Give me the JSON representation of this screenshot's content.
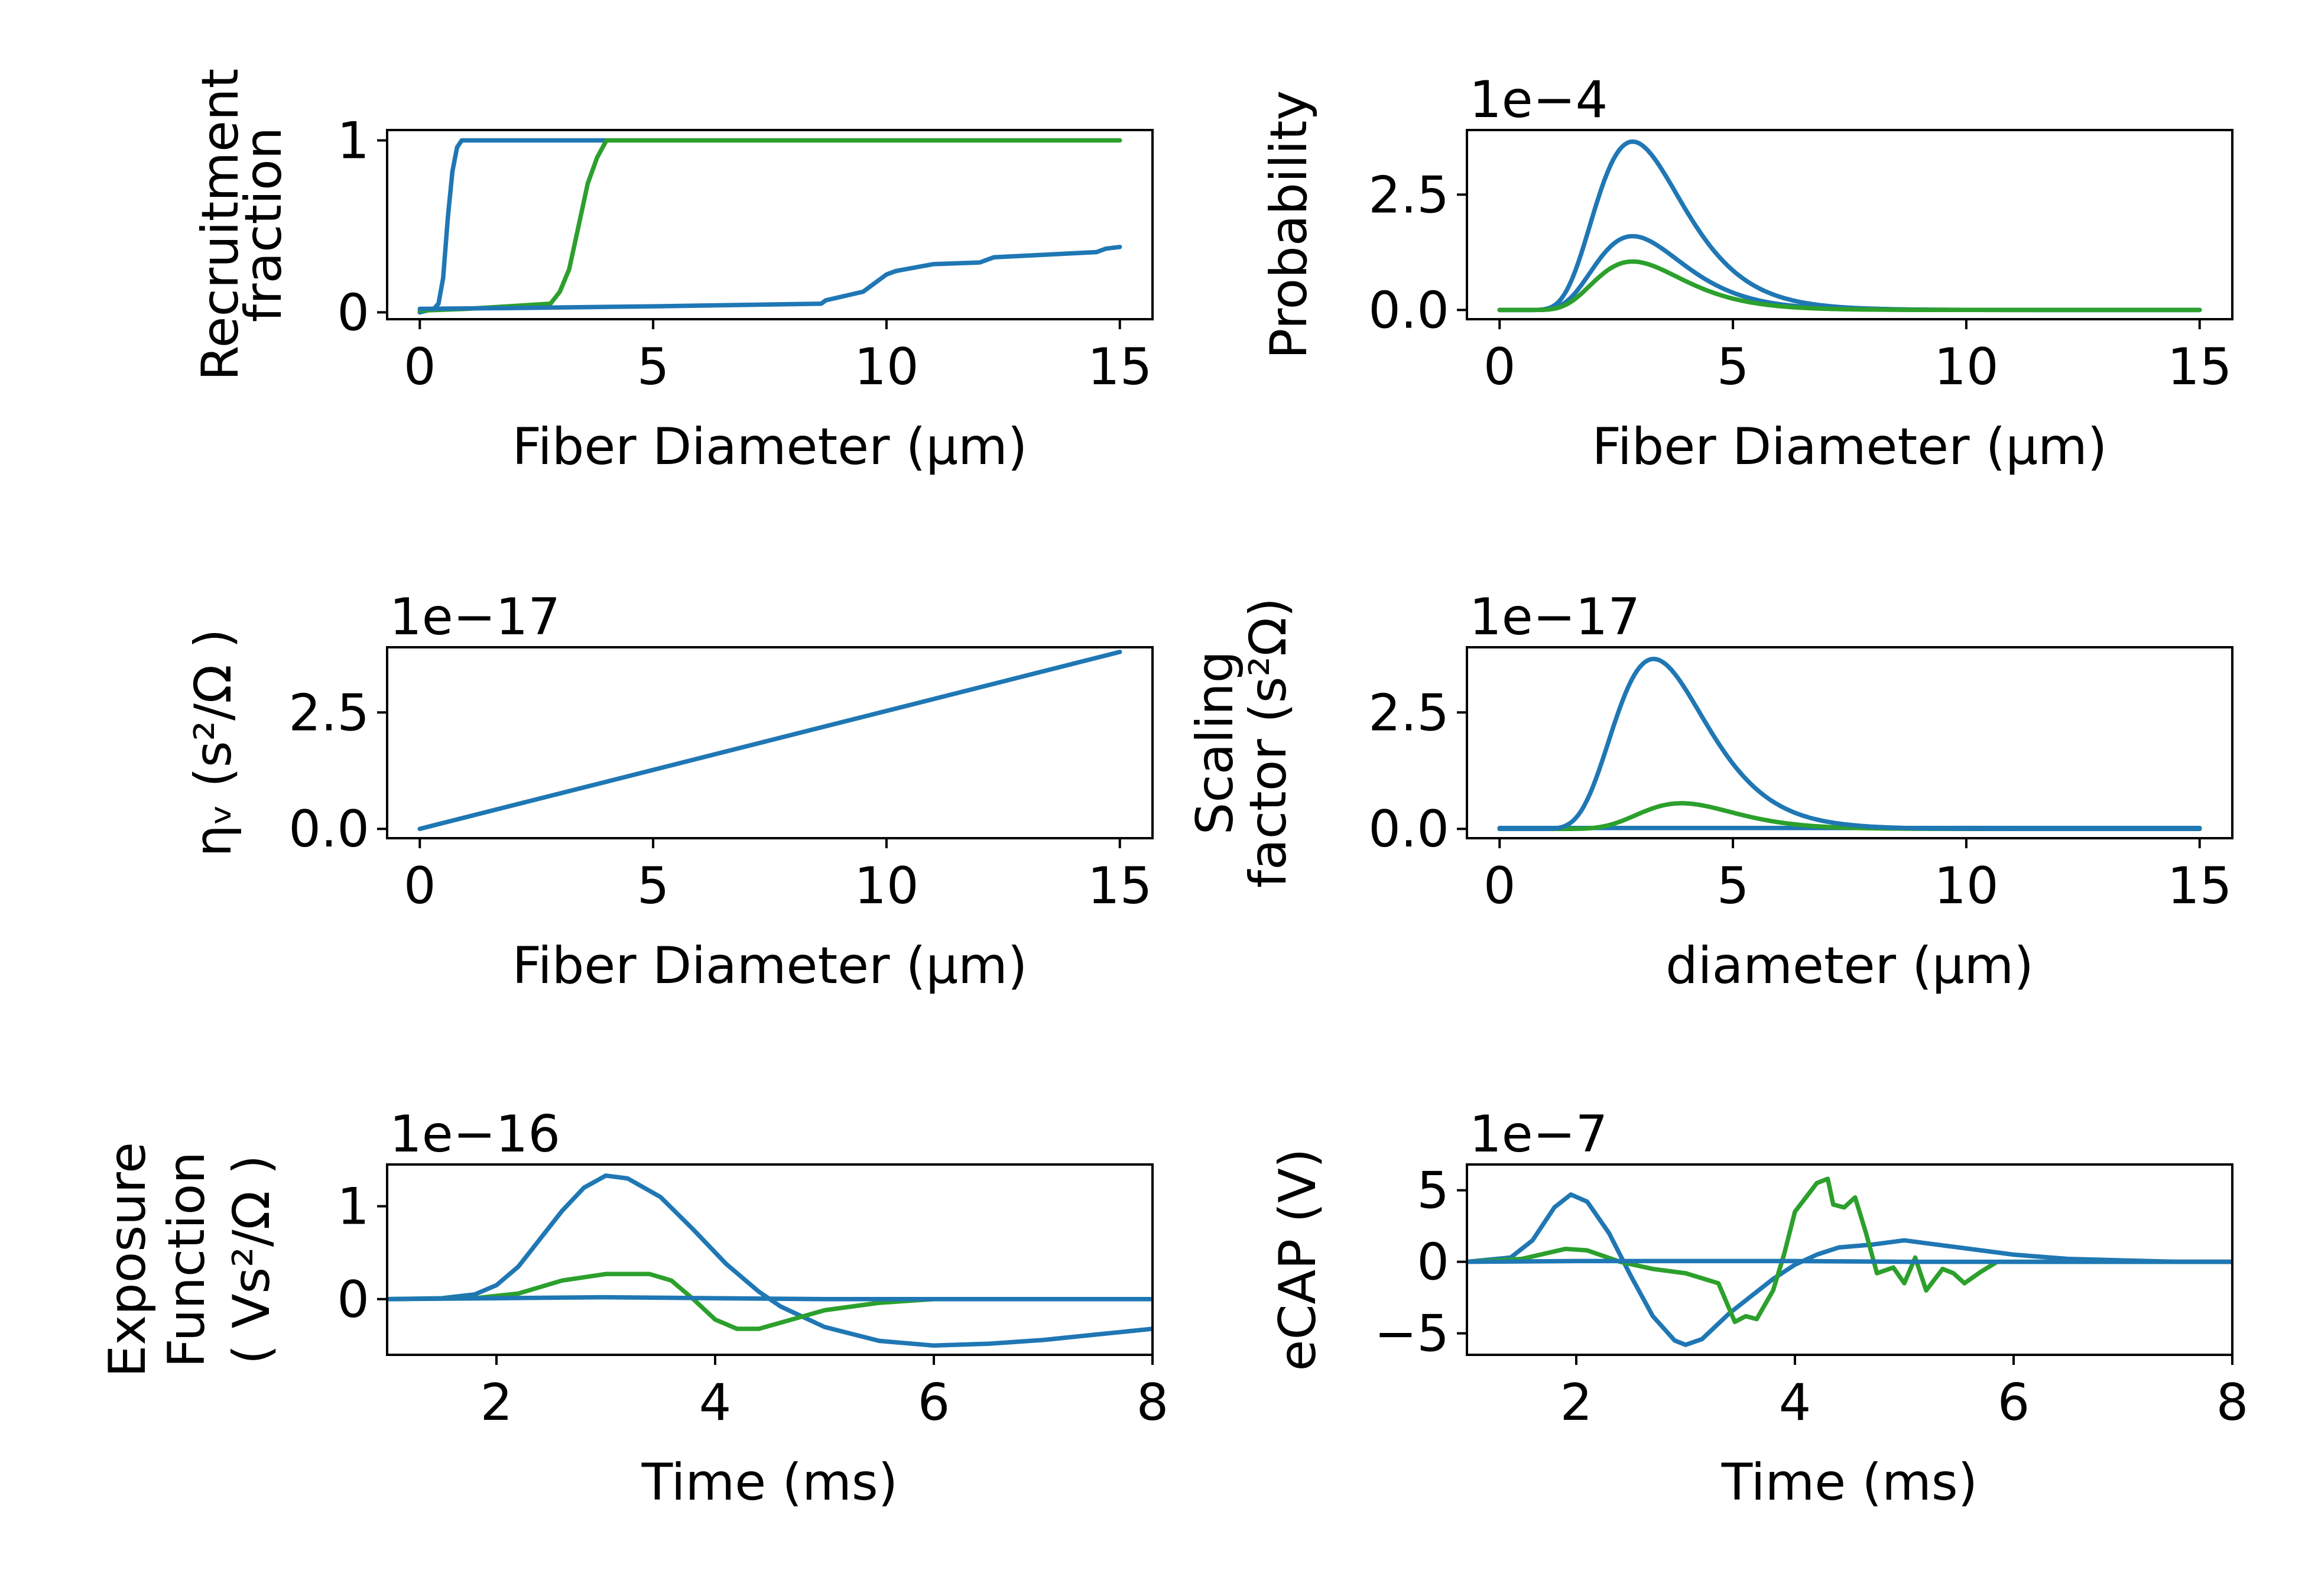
{
  "figure": {
    "background": "#ffffff"
  },
  "chart_data": [
    {
      "id": "recruitment",
      "type": "line",
      "xlabel": "Fiber Diameter (μm)",
      "ylabel": [
        "Recruitment",
        "fraction"
      ],
      "offset_text": "",
      "xlim": [
        -0.7,
        15.7
      ],
      "ylim": [
        -0.04,
        1.06
      ],
      "xticks": [
        0,
        5,
        10,
        15
      ],
      "xtick_labels": [
        "0",
        "5",
        "10",
        "15"
      ],
      "yticks": [
        0,
        1
      ],
      "ytick_labels": [
        "0",
        "1"
      ],
      "series": [
        {
          "color": "#1f77b4",
          "points": [
            [
              0,
              0
            ],
            [
              0.3,
              0.02
            ],
            [
              0.4,
              0.05
            ],
            [
              0.5,
              0.2
            ],
            [
              0.6,
              0.55
            ],
            [
              0.7,
              0.82
            ],
            [
              0.8,
              0.96
            ],
            [
              0.9,
              1
            ],
            [
              4.0,
              1
            ]
          ]
        },
        {
          "color": "#2ca02c",
          "points": [
            [
              0,
              0.01
            ],
            [
              1,
              0.02
            ],
            [
              2.8,
              0.05
            ],
            [
              3.0,
              0.12
            ],
            [
              3.2,
              0.25
            ],
            [
              3.4,
              0.5
            ],
            [
              3.6,
              0.75
            ],
            [
              3.8,
              0.9
            ],
            [
              4.0,
              1
            ],
            [
              15,
              1
            ]
          ]
        },
        {
          "color": "#1f77b4",
          "points": [
            [
              0,
              0.02
            ],
            [
              2,
              0.025
            ],
            [
              5,
              0.035
            ],
            [
              8.6,
              0.05
            ],
            [
              8.7,
              0.07
            ],
            [
              9.5,
              0.12
            ],
            [
              10,
              0.22
            ],
            [
              10.2,
              0.24
            ],
            [
              11,
              0.28
            ],
            [
              12,
              0.29
            ],
            [
              12.3,
              0.32
            ],
            [
              14.5,
              0.35
            ],
            [
              14.7,
              0.37
            ],
            [
              15,
              0.38
            ]
          ]
        }
      ]
    },
    {
      "id": "probability",
      "type": "line",
      "xlabel": "Fiber Diameter (μm)",
      "ylabel": [
        "Probability"
      ],
      "offset_text": "1e−4",
      "xlim": [
        -0.7,
        15.7
      ],
      "ylim": [
        -0.2,
        3.9
      ],
      "xticks": [
        0,
        5,
        10,
        15
      ],
      "xtick_labels": [
        "0",
        "5",
        "10",
        "15"
      ],
      "yticks": [
        0,
        2.5
      ],
      "ytick_labels": [
        "0.0",
        "2.5"
      ],
      "curves": [
        {
          "color": "#1f77b4",
          "kind": "lognormal",
          "amp": 3.65,
          "mode": 2.85,
          "sigma": 0.33,
          "x0": 0,
          "x1": 15
        },
        {
          "color": "#1f77b4",
          "kind": "lognormal",
          "amp": 1.6,
          "mode": 2.85,
          "sigma": 0.33,
          "x0": 0,
          "x1": 15
        },
        {
          "color": "#2ca02c",
          "kind": "lognormal",
          "amp": 1.05,
          "mode": 2.85,
          "sigma": 0.33,
          "x0": 0,
          "x1": 15
        }
      ]
    },
    {
      "id": "eta",
      "type": "line",
      "xlabel": "Fiber Diameter (μm)",
      "ylabel": [
        "ηᵥ (s²/Ω )"
      ],
      "offset_text": "1e−17",
      "xlim": [
        -0.7,
        15.7
      ],
      "ylim": [
        -0.2,
        3.9
      ],
      "xticks": [
        0,
        5,
        10,
        15
      ],
      "xtick_labels": [
        "0",
        "5",
        "10",
        "15"
      ],
      "yticks": [
        0,
        2.5
      ],
      "ytick_labels": [
        "0.0",
        "2.5"
      ],
      "series": [
        {
          "color": "#1f77b4",
          "points": [
            [
              0,
              0
            ],
            [
              15,
              3.8
            ]
          ]
        }
      ]
    },
    {
      "id": "scaling",
      "type": "line",
      "xlabel": "diameter (μm)",
      "ylabel": [
        "Scaling",
        "factor (s²Ω)"
      ],
      "offset_text": "1e−17",
      "xlim": [
        -0.7,
        15.7
      ],
      "ylim": [
        -0.2,
        3.9
      ],
      "xticks": [
        0,
        5,
        10,
        15
      ],
      "xtick_labels": [
        "0",
        "5",
        "10",
        "15"
      ],
      "yticks": [
        0,
        2.5
      ],
      "ytick_labels": [
        "0.0",
        "2.5"
      ],
      "curves": [
        {
          "color": "#1f77b4",
          "kind": "flat",
          "value": 0.02,
          "x0": 0,
          "x1": 15
        },
        {
          "color": "#2ca02c",
          "kind": "lognormal",
          "amp": 0.55,
          "mode": 3.9,
          "sigma": 0.26,
          "x0": 0,
          "x1": 15
        },
        {
          "color": "#1f77b4",
          "kind": "lognormal",
          "amp": 3.65,
          "mode": 3.3,
          "sigma": 0.3,
          "x0": 0,
          "x1": 15
        }
      ]
    },
    {
      "id": "exposure",
      "type": "line",
      "xlabel": "Time (ms)",
      "ylabel": [
        "Exposure",
        "Function",
        "( Vs²/Ω )"
      ],
      "offset_text": "1e−16",
      "xlim": [
        1,
        8
      ],
      "ylim": [
        -0.6,
        1.45
      ],
      "xticks": [
        2,
        4,
        6,
        8
      ],
      "xtick_labels": [
        "2",
        "4",
        "6",
        "8"
      ],
      "yticks": [
        0,
        1
      ],
      "ytick_labels": [
        "0",
        "1"
      ],
      "series": [
        {
          "color": "#1f77b4",
          "points": [
            [
              1,
              0
            ],
            [
              1.5,
              0.01
            ],
            [
              1.8,
              0.05
            ],
            [
              2.0,
              0.15
            ],
            [
              2.2,
              0.35
            ],
            [
              2.4,
              0.65
            ],
            [
              2.6,
              0.95
            ],
            [
              2.8,
              1.2
            ],
            [
              3.0,
              1.33
            ],
            [
              3.2,
              1.3
            ],
            [
              3.5,
              1.1
            ],
            [
              3.8,
              0.75
            ],
            [
              4.1,
              0.38
            ],
            [
              4.4,
              0.08
            ],
            [
              4.6,
              -0.08
            ],
            [
              5.0,
              -0.3
            ],
            [
              5.5,
              -0.45
            ],
            [
              6.0,
              -0.5
            ],
            [
              6.5,
              -0.48
            ],
            [
              7.0,
              -0.44
            ],
            [
              7.5,
              -0.38
            ],
            [
              8,
              -0.32
            ]
          ]
        },
        {
          "color": "#2ca02c",
          "points": [
            [
              1,
              0
            ],
            [
              1.8,
              0.01
            ],
            [
              2.2,
              0.06
            ],
            [
              2.6,
              0.2
            ],
            [
              3.0,
              0.27
            ],
            [
              3.4,
              0.27
            ],
            [
              3.6,
              0.2
            ],
            [
              3.8,
              0.0
            ],
            [
              4.0,
              -0.22
            ],
            [
              4.2,
              -0.32
            ],
            [
              4.4,
              -0.32
            ],
            [
              4.7,
              -0.22
            ],
            [
              5.0,
              -0.12
            ],
            [
              5.5,
              -0.04
            ],
            [
              6.0,
              0
            ],
            [
              8,
              0
            ]
          ]
        },
        {
          "color": "#1f77b4",
          "points": [
            [
              1,
              0
            ],
            [
              2,
              0.01
            ],
            [
              3,
              0.02
            ],
            [
              4,
              0.01
            ],
            [
              5,
              0
            ],
            [
              6,
              0
            ],
            [
              8,
              0
            ]
          ]
        }
      ]
    },
    {
      "id": "ecap",
      "type": "line",
      "xlabel": "Time (ms)",
      "ylabel": [
        "eCAP (V)"
      ],
      "offset_text": "1e−7",
      "xlim": [
        1,
        8
      ],
      "ylim": [
        -6.5,
        6.8
      ],
      "xticks": [
        2,
        4,
        6,
        8
      ],
      "xtick_labels": [
        "2",
        "4",
        "6",
        "8"
      ],
      "yticks": [
        -5,
        0,
        5
      ],
      "ytick_labels": [
        "−5",
        "0",
        "5"
      ],
      "series": [
        {
          "color": "#1f77b4",
          "points": [
            [
              1,
              0
            ],
            [
              1.4,
              0.3
            ],
            [
              1.6,
              1.5
            ],
            [
              1.8,
              3.8
            ],
            [
              1.95,
              4.7
            ],
            [
              2.1,
              4.2
            ],
            [
              2.3,
              2.0
            ],
            [
              2.5,
              -1.0
            ],
            [
              2.7,
              -3.8
            ],
            [
              2.9,
              -5.5
            ],
            [
              3.0,
              -5.8
            ],
            [
              3.15,
              -5.4
            ],
            [
              3.4,
              -3.6
            ],
            [
              3.6,
              -2.4
            ],
            [
              3.8,
              -1.2
            ],
            [
              4.0,
              -0.2
            ],
            [
              4.2,
              0.5
            ],
            [
              4.4,
              1.0
            ],
            [
              4.7,
              1.2
            ],
            [
              5.0,
              1.5
            ],
            [
              5.2,
              1.3
            ],
            [
              5.5,
              1.0
            ],
            [
              6.0,
              0.5
            ],
            [
              6.5,
              0.2
            ],
            [
              7.0,
              0.1
            ],
            [
              7.5,
              0
            ],
            [
              8,
              0
            ]
          ]
        },
        {
          "color": "#2ca02c",
          "points": [
            [
              1,
              0
            ],
            [
              1.5,
              0.2
            ],
            [
              1.9,
              0.9
            ],
            [
              2.1,
              0.8
            ],
            [
              2.4,
              0
            ],
            [
              2.7,
              -0.5
            ],
            [
              3.0,
              -0.8
            ],
            [
              3.3,
              -1.5
            ],
            [
              3.45,
              -4.2
            ],
            [
              3.55,
              -3.8
            ],
            [
              3.65,
              -4.0
            ],
            [
              3.8,
              -2.0
            ],
            [
              3.9,
              0.5
            ],
            [
              4.0,
              3.5
            ],
            [
              4.1,
              4.5
            ],
            [
              4.2,
              5.5
            ],
            [
              4.3,
              5.8
            ],
            [
              4.35,
              4.0
            ],
            [
              4.45,
              3.8
            ],
            [
              4.55,
              4.5
            ],
            [
              4.65,
              2.0
            ],
            [
              4.75,
              -0.8
            ],
            [
              4.9,
              -0.4
            ],
            [
              5.0,
              -1.5
            ],
            [
              5.1,
              0.3
            ],
            [
              5.2,
              -2.0
            ],
            [
              5.35,
              -0.5
            ],
            [
              5.45,
              -0.8
            ],
            [
              5.55,
              -1.5
            ],
            [
              5.7,
              -0.7
            ],
            [
              5.85,
              0
            ],
            [
              8,
              0
            ]
          ]
        },
        {
          "color": "#1f77b4",
          "points": [
            [
              1,
              0
            ],
            [
              2,
              0.05
            ],
            [
              3,
              0.05
            ],
            [
              4,
              0.05
            ],
            [
              5,
              0
            ],
            [
              6,
              0
            ],
            [
              8,
              0
            ]
          ]
        }
      ]
    }
  ]
}
